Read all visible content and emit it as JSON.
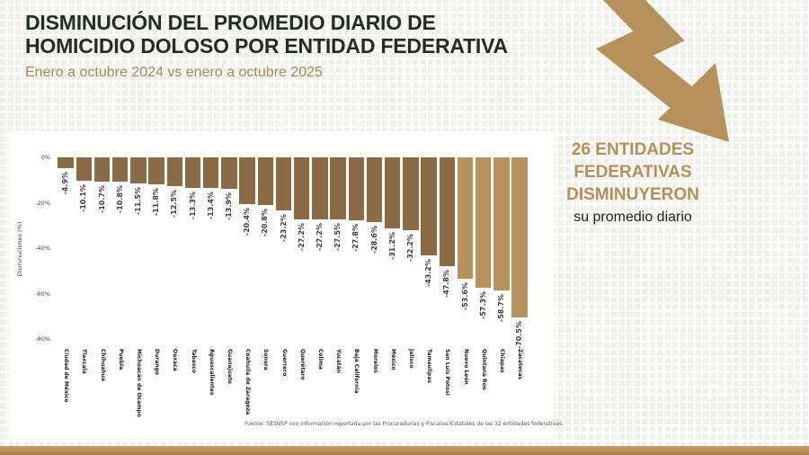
{
  "header": {
    "title_line1": "DISMINUCIÓN DEL PROMEDIO DIARIO DE",
    "title_line2": "HOMICIDIO DOLOSO POR ENTIDAD FEDERATIVA",
    "subtitle": "Enero a octubre 2024 vs enero a octubre 2025"
  },
  "callout": {
    "line1": "26 ENTIDADES",
    "line2": "FEDERATIVAS",
    "line3": "DISMINUYERON",
    "line4": "su promedio diario"
  },
  "colors": {
    "accent_tan": "#b3905a",
    "arrow": "#b5915c",
    "bar_default": "#8a6b45",
    "bar_highlight": "#b6925f",
    "title_text": "#1f2d26",
    "bottom_strip": "#b8915a"
  },
  "chart_data": {
    "type": "bar",
    "title": "",
    "xlabel": "",
    "ylabel": "Disminuciones (%)",
    "ylim": [
      -80,
      0
    ],
    "grid": false,
    "legend": "none",
    "yticks": [
      {
        "label": "0%",
        "value": 0
      },
      {
        "label": "-20%",
        "value": -20
      },
      {
        "label": "-40%",
        "value": -40
      },
      {
        "label": "-60%",
        "value": -60
      },
      {
        "label": "-80%",
        "value": -80
      }
    ],
    "categories": [
      "Ciudad de México",
      "Tlaxcala",
      "Chihuahua",
      "Puebla",
      "Michoacán de Ocampo",
      "Durango",
      "Oaxaca",
      "Tabasco",
      "Aguascalientes",
      "Guanajuato",
      "Coahuila de Zaragoza",
      "Sonora",
      "Guerrero",
      "Querétaro",
      "Colima",
      "Yucatán",
      "Baja California",
      "Morelos",
      "México",
      "Jalisco",
      "Tamaulipas",
      "San Luis Potosí",
      "Nuevo León",
      "Quintana Roo",
      "Chiapas",
      "Zacatecas"
    ],
    "values": [
      -4.9,
      -10.1,
      -10.7,
      -10.8,
      -11.5,
      -11.8,
      -12.5,
      -13.3,
      -13.4,
      -13.9,
      -20.4,
      -20.8,
      -23.2,
      -27.2,
      -27.2,
      -27.5,
      -27.8,
      -28.6,
      -31.2,
      -32.2,
      -43.2,
      -47.8,
      -53.6,
      -57.3,
      -58.7,
      -70.5
    ],
    "labels": [
      "-4.9%",
      "-10.1%",
      "-10.7%",
      "-10.8%",
      "-11.5%",
      "-11.8%",
      "-12.5%",
      "-13.3%",
      "-13.4%",
      "-13.9%",
      "-20.4%",
      "-20.8%",
      "-23.2%",
      "-27.2%",
      "-27.2%",
      "-27.5%",
      "-27.8%",
      "-28.6%",
      "-31.2%",
      "-32.2%",
      "-43.2%",
      "-47.8%",
      "-53.6%",
      "-57.3%",
      "-58.7%",
      "-70.5%"
    ],
    "highlighted": [
      "Nuevo León",
      "Quintana Roo",
      "Chiapas",
      "Zacatecas"
    ]
  },
  "footer": {
    "source": "Fuente: SESNSP con información reportada por las Procuradurías y Fiscalías Estatales de las 32 entidades federativas."
  },
  "icons": {
    "arrow": "zigzag-down-right-arrow"
  }
}
